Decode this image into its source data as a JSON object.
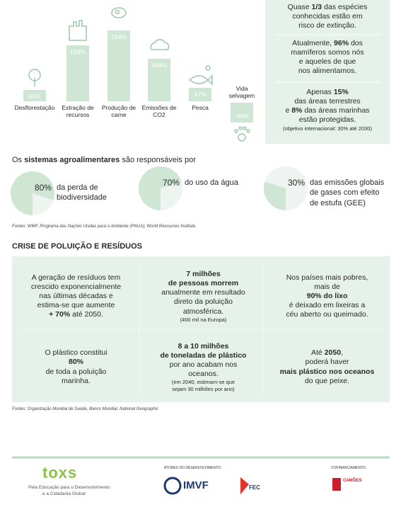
{
  "chart_data": {
    "type": "bar",
    "categories": [
      "Desflorestação",
      "Extração de recursos",
      "Produção de carne",
      "Emissões de CO2",
      "Pesca",
      "Vida selvagem"
    ],
    "values": [
      40,
      193,
      244,
      146,
      47,
      -69
    ],
    "value_labels": [
      "40%",
      "193%",
      "244%",
      "146%",
      "47%",
      "-69%"
    ],
    "color": "#cfe6d5"
  },
  "facts": [
    {
      "lines": [
        {
          "parts": [
            "Quase ",
            {
              "text": "1/3",
              "bold": true
            },
            " das espécies"
          ]
        },
        "conhecidas estão em",
        "risco de extinção."
      ]
    },
    {
      "lines": [
        {
          "parts": [
            "Atualmente, ",
            {
              "text": "96%",
              "bold": true
            },
            " dos"
          ]
        },
        "mamíferos somos nós",
        "e aqueles de que",
        "nos alimentamos."
      ]
    },
    {
      "lines": [
        {
          "parts": [
            "Apenas ",
            {
              "text": "15%",
              "bold": true
            }
          ]
        },
        "das áreas terrestres",
        {
          "parts": [
            "e ",
            {
              "text": "8%",
              "bold": true
            },
            " das áreas marinhas"
          ]
        },
        "estão protegidas.",
        {
          "text": "(objetivo internacional: 30% até 2030)",
          "small": true
        }
      ]
    }
  ],
  "agro": {
    "heading": {
      "parts": [
        "Os ",
        {
          "text": "sistemas agroalimentares",
          "bold": true
        },
        " são responsáveis por"
      ]
    },
    "pies": [
      {
        "value": 80,
        "label": "80%",
        "lines": [
          "da perda de",
          "biodiversidade"
        ]
      },
      {
        "value": 70,
        "label": "70%",
        "lines": [
          "do uso da água"
        ]
      },
      {
        "value": 30,
        "label": "30%",
        "lines": [
          "das emissões globais",
          "de gases com efeito",
          "de estufa (GEE)"
        ]
      }
    ],
    "sources": "Fontes: WWF, Programa das Nações Unidas para o Ambiente (PNUA), World Resources Institute."
  },
  "pollution": {
    "title": "CRISE DE POLUIÇÃO E RESÍDUOS",
    "cells": [
      {
        "lines": [
          "A geração de resíduos tem",
          "crescido exponencialmente",
          "nas últimas décadas e",
          "estima-se que aumente",
          {
            "parts": [
              {
                "text": "+ 70%",
                "bold": true
              },
              " até 2050."
            ]
          }
        ]
      },
      {
        "lines": [
          {
            "text": "7 milhões",
            "bold": true
          },
          {
            "text": "de pessoas morrem",
            "bold": true
          },
          "anualmente em resultado",
          "direto da poluição",
          "atmosférica.",
          {
            "text": "(400 mil na Europa)",
            "small": true
          }
        ]
      },
      {
        "lines": [
          "Nos países mais pobres,",
          "mais de",
          {
            "text": "90% do lixo",
            "bold": true
          },
          "é deixado em lixeiras a",
          "céu aberto ou queimado."
        ]
      },
      {
        "lines": [
          "O plástico constitui",
          {
            "text": "80%",
            "bold": true
          },
          "de toda a poluição",
          "marinha."
        ]
      },
      {
        "lines": [
          {
            "text": "8 a 10 milhões",
            "bold": true
          },
          {
            "text": "de toneladas de plástico",
            "bold": true
          },
          "por ano acabam nos",
          "oceanos.",
          {
            "text": "(em 2040, estimam-se que",
            "small": true
          },
          {
            "text": "sejam 30 milhões por ano)",
            "small": true
          }
        ]
      },
      {
        "lines": [
          {
            "parts": [
              "Até ",
              {
                "text": "2050",
                "bold": true
              },
              ","
            ]
          },
          "poderá haver",
          {
            "text": "mais plástico nos oceanos",
            "bold": true
          },
          "do que peixe."
        ]
      }
    ],
    "sources": "Fontes: Organização Mundial de Saúde, Banco Mundial, National Geographic"
  },
  "footer": {
    "logo": "toxs",
    "tagline_1": "Pela Educação para o Desenvolvimento",
    "tagline_2": "e a Cidadania Global",
    "actors_label": "ATORES DO DESENVOLVIMENTO:",
    "imvf": "IMVF",
    "fec": "FEC",
    "cofin_label": "COFINANCIAMENTO:",
    "camoes": "CAMÕES"
  }
}
